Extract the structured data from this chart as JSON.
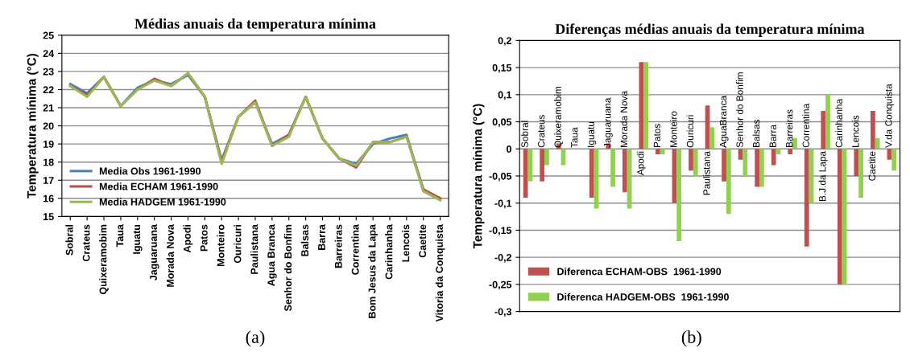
{
  "chart_data": [
    {
      "type": "line",
      "title": "Médias anuais da temperatura mínima",
      "ylabel": "Temperatura mínima (°C)",
      "categories": [
        "Sobral",
        "Crateus",
        "Quixeramobim",
        "Taua",
        "Iguatu",
        "Jaguaruana",
        "Morada Nova",
        "Apodi",
        "Patos",
        "Monteiro",
        "Ouricuri",
        "Paulistana",
        "Agua Branca",
        "Senhor do Bonfim",
        "Balsas",
        "Barra",
        "Barreiras",
        "Correntina",
        "Bom Jesus da Lapa",
        "Carinhanha",
        "Lencois",
        "Caetite",
        "Vitoria da Conquista"
      ],
      "series": [
        {
          "name": "Media Obs 1961-1990",
          "color": "#4a7ebb",
          "values": [
            22.3,
            21.8,
            22.7,
            21.1,
            22.1,
            22.5,
            22.3,
            22.8,
            21.6,
            18.1,
            20.5,
            21.3,
            19.0,
            19.5,
            21.6,
            19.3,
            18.2,
            17.9,
            19.0,
            19.3,
            19.5,
            16.4,
            16.0
          ]
        },
        {
          "name": "Media ECHAM 1961-1990",
          "color": "#be4b48",
          "values": [
            22.2,
            21.7,
            22.7,
            21.1,
            22.0,
            22.6,
            22.2,
            22.9,
            21.6,
            18.0,
            20.5,
            21.4,
            18.9,
            19.5,
            21.6,
            19.3,
            18.2,
            17.7,
            19.1,
            19.1,
            19.4,
            16.5,
            16.0
          ]
        },
        {
          "name": "Media HADGEM 1961-1990",
          "color": "#98b954",
          "values": [
            22.2,
            21.6,
            22.7,
            21.1,
            22.0,
            22.5,
            22.2,
            22.9,
            21.6,
            17.9,
            20.5,
            21.3,
            18.9,
            19.4,
            21.6,
            19.3,
            18.2,
            17.8,
            19.1,
            19.1,
            19.4,
            16.4,
            15.9
          ]
        }
      ],
      "ylim": [
        15,
        25
      ],
      "yticks": [
        15,
        16,
        17,
        18,
        19,
        20,
        21,
        22,
        23,
        24,
        25
      ],
      "grid": "y",
      "legend": "bottom left",
      "marker": "none",
      "line_style": "solid",
      "annotations": [
        "(a)"
      ]
    },
    {
      "type": "bar",
      "title": "Diferenças médias anuais da temperatura mínima",
      "ylabel": "Temperatura mínima (°C)",
      "categories": [
        "Sobral",
        "Crateus",
        "Quixeramobim",
        "Taua",
        "Iguatu",
        "Jaguaruana",
        "Morada Nova",
        "Apodi",
        "Patos",
        "Monteiro",
        "Ouricuri",
        "Paulistana",
        "AguaBranca",
        "Senhor do Bonfim",
        "Balsas",
        "Barra",
        "Barreiras",
        "Correntina",
        "B.J.da Lapa",
        "Carinhanha",
        "Lencois",
        "Caetite",
        "V.da Conquista"
      ],
      "series": [
        {
          "name": "Diferenca ECHAM-OBS  1961-1990",
          "color": "#c0504d",
          "values": [
            -0.09,
            -0.06,
            0.01,
            0,
            -0.09,
            0.01,
            -0.08,
            0.16,
            -0.01,
            -0.1,
            -0.04,
            0.08,
            -0.06,
            -0.02,
            -0.07,
            -0.03,
            -0.01,
            -0.18,
            0.07,
            -0.25,
            -0.05,
            0.07,
            -0.02
          ]
        },
        {
          "name": "Diferenca HADGEM-OBS  1961-1990",
          "color": "#92d050",
          "values": [
            -0.06,
            -0.03,
            -0.03,
            0,
            -0.11,
            -0.07,
            -0.11,
            0.16,
            -0.01,
            -0.17,
            -0.05,
            0.04,
            -0.12,
            -0.05,
            -0.07,
            -0.01,
            0.02,
            -0.1,
            0.1,
            -0.25,
            -0.09,
            0.02,
            -0.04
          ]
        }
      ],
      "ylim": [
        -0.3,
        0.2
      ],
      "yticks": [
        {
          "value": -0.3,
          "label": "-0,3"
        },
        {
          "value": -0.25,
          "label": "-0,25"
        },
        {
          "value": -0.2,
          "label": "-0,2"
        },
        {
          "value": -0.15,
          "label": "-0,15"
        },
        {
          "value": -0.1,
          "label": "-0,1"
        },
        {
          "value": -0.05,
          "label": "-0,05"
        },
        {
          "value": 0,
          "label": "0"
        },
        {
          "value": 0.05,
          "label": "0,05"
        },
        {
          "value": 0.1,
          "label": "0,1"
        },
        {
          "value": 0.15,
          "label": "0,15"
        },
        {
          "value": 0.2,
          "label": "0,2"
        }
      ],
      "grid": "y",
      "legend": "bottom left",
      "tick_labels": "y",
      "annotations": [
        "(b)"
      ]
    }
  ]
}
